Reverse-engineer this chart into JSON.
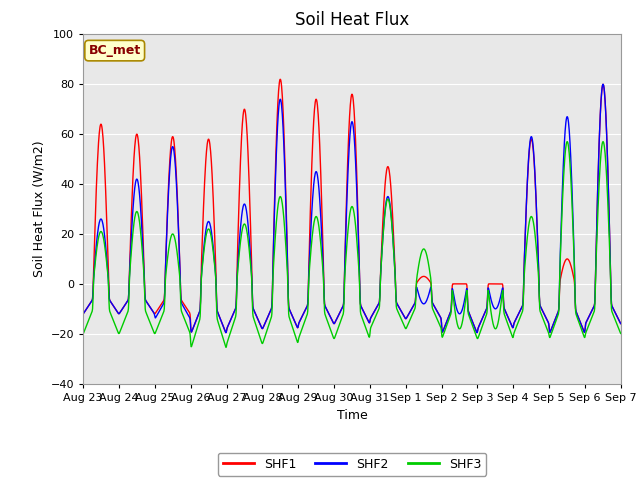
{
  "title": "Soil Heat Flux",
  "xlabel": "Time",
  "ylabel": "Soil Heat Flux (W/m2)",
  "ylim": [
    -40,
    100
  ],
  "yticks": [
    -40,
    -20,
    0,
    20,
    40,
    60,
    80,
    100
  ],
  "background_color": "#ffffff",
  "plot_bg_color": "#e8e8e8",
  "legend_label": "BC_met",
  "series_labels": [
    "SHF1",
    "SHF2",
    "SHF3"
  ],
  "series_colors": [
    "#ff0000",
    "#0000ff",
    "#00cc00"
  ],
  "line_width": 1.0,
  "x_dates": [
    "Aug 23",
    "Aug 24",
    "Aug 25",
    "Aug 26",
    "Aug 27",
    "Aug 28",
    "Aug 29",
    "Aug 30",
    "Aug 31",
    "Sep 1",
    "Sep 2",
    "Sep 3",
    "Sep 4",
    "Sep 5",
    "Sep 6",
    "Sep 7"
  ],
  "grid_color": "#ffffff",
  "title_fontsize": 12,
  "axis_fontsize": 9,
  "tick_fontsize": 8
}
